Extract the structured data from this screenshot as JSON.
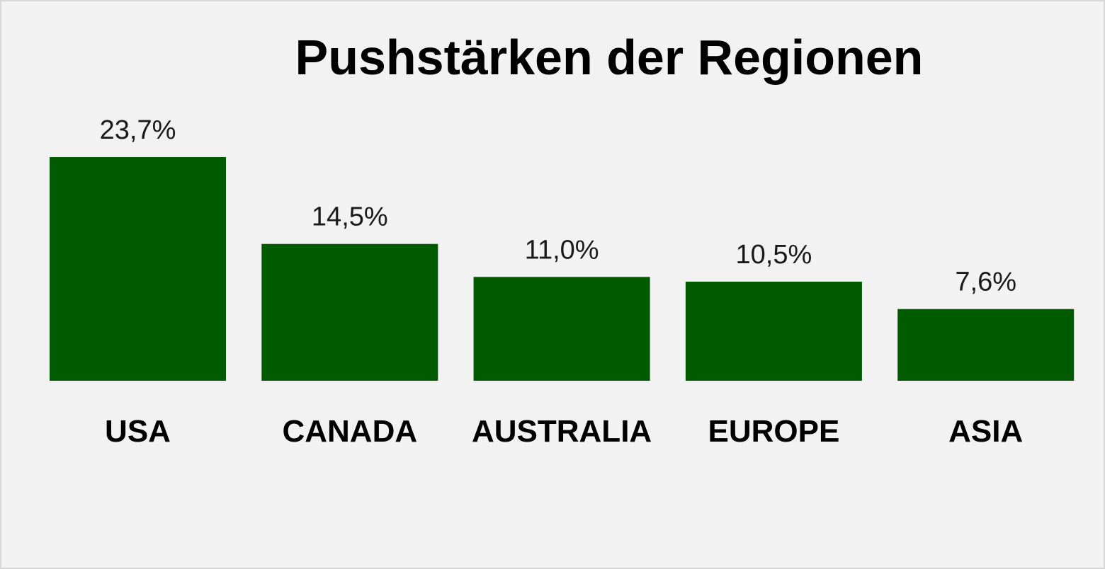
{
  "chart_data": {
    "type": "bar",
    "title": "Pushstärken der Regionen",
    "categories": [
      "USA",
      "CANADA",
      "AUSTRALIA",
      "EUROPE",
      "ASIA"
    ],
    "values": [
      23.7,
      14.5,
      11.0,
      10.5,
      7.6
    ],
    "value_labels": [
      "23,7%",
      "14,5%",
      "11,0%",
      "10,5%",
      "7,6%"
    ],
    "ylim": [
      0,
      23.7
    ],
    "grid": false,
    "legend": "none",
    "colors": {
      "bar": "#005a00",
      "background": "#f2f2f2",
      "border": "#d9d9d9"
    }
  }
}
